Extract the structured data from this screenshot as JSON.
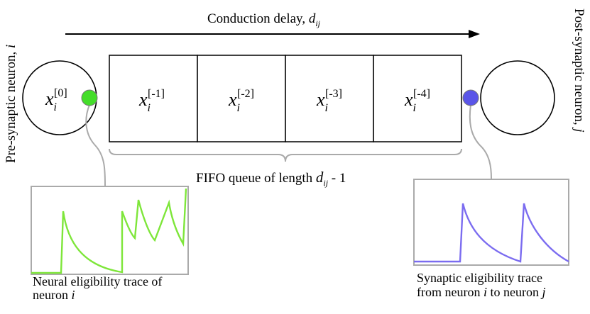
{
  "top_arrow": {
    "label": "Conduction delay, ",
    "var": "d",
    "sub": "ij"
  },
  "pre_neuron": {
    "label": "Pre-synaptic neuron, ",
    "var": "i",
    "state_base": "x",
    "state_sub": "i",
    "state_sup": "[0]",
    "dot_color": "#44dd2a"
  },
  "post_neuron": {
    "label": "Post-synaptic neuron, ",
    "var": "j",
    "dot_color": "#5a55e8"
  },
  "queue": {
    "cells": [
      {
        "base": "x",
        "sub": "i",
        "sup": "[-1]"
      },
      {
        "base": "x",
        "sub": "i",
        "sup": "[-2]"
      },
      {
        "base": "x",
        "sub": "i",
        "sup": "[-3]"
      },
      {
        "base": "x",
        "sub": "i",
        "sup": "[-4]"
      }
    ],
    "caption_pre": "FIFO queue of length ",
    "caption_var": "d",
    "caption_sub": "ij",
    "caption_post": " - 1"
  },
  "neural_trace": {
    "line1": "Neural eligibility trace of",
    "line2_pre": "neuron ",
    "line2_var": "i",
    "color": "#7ee63a"
  },
  "synaptic_trace": {
    "line1": "Synaptic eligibility trace",
    "line2_pre": "from neuron ",
    "line2_var": "i",
    "line2_mid": " to neuron ",
    "line2_var2": "j",
    "color": "#7b6cf0"
  }
}
